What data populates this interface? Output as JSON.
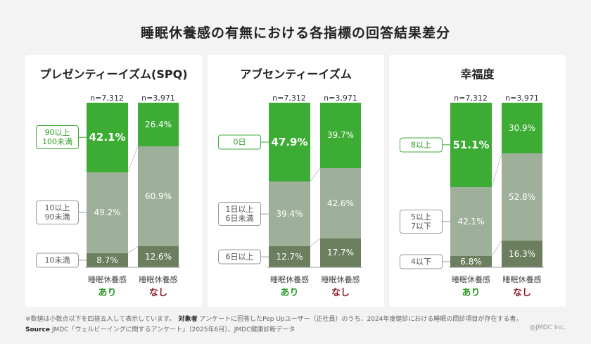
{
  "title": "睡眠休養感の有無における各指標の回答結果差分",
  "colors": {
    "top": "#3cac34",
    "mid": "#9fb09a",
    "bottom": "#6b7f5f",
    "ari": "#2f9b28",
    "nashi": "#8a1f2a"
  },
  "chart_data": [
    {
      "type": "bar",
      "stacked": true,
      "title": "プレゼンティーイズム(SPQ)",
      "categories": [
        "睡眠休養感 あり",
        "睡眠休養感 なし"
      ],
      "n": [
        "n=7,312",
        "n=3,971"
      ],
      "series": [
        {
          "name": "90以上\n100未満",
          "values": [
            42.1,
            26.4
          ]
        },
        {
          "name": "10以上\n90未満",
          "values": [
            49.2,
            60.9
          ]
        },
        {
          "name": "10未満",
          "values": [
            8.7,
            12.6
          ]
        }
      ],
      "ylim": [
        0,
        100
      ]
    },
    {
      "type": "bar",
      "stacked": true,
      "title": "アブセンティーイズム",
      "categories": [
        "睡眠休養感 あり",
        "睡眠休養感 なし"
      ],
      "n": [
        "n=7,312",
        "n=3,971"
      ],
      "series": [
        {
          "name": "0日",
          "values": [
            47.9,
            39.7
          ]
        },
        {
          "name": "1日以上\n6日未満",
          "values": [
            39.4,
            42.6
          ]
        },
        {
          "name": "6日以上",
          "values": [
            12.7,
            17.7
          ]
        }
      ],
      "ylim": [
        0,
        100
      ]
    },
    {
      "type": "bar",
      "stacked": true,
      "title": "幸福度",
      "categories": [
        "睡眠休養感 あり",
        "睡眠休養感 なし"
      ],
      "n": [
        "n=7,312",
        "n=3,971"
      ],
      "series": [
        {
          "name": "8以上",
          "values": [
            51.1,
            30.9
          ]
        },
        {
          "name": "5以上\n7以下",
          "values": [
            42.1,
            52.8
          ]
        },
        {
          "name": "4以下",
          "values": [
            6.8,
            16.3
          ]
        }
      ],
      "ylim": [
        0,
        100
      ]
    }
  ],
  "group_prefix": "睡眠休養感",
  "group_ari": "あり",
  "group_nashi": "なし",
  "footnote": "※数値は小数点以下を四捨五入して表示しています。",
  "target_label": "対象者",
  "target_text": "アンケートに回答したPep Upユーザー（正社員）のうち、2024年度健診における睡眠の問診項目が存在する者。",
  "source_label": "Source",
  "source_text": "JMDC「ウェルビーイングに関するアンケート」（2025年6月）、JMDC健康診断データ",
  "copyright": "@JMDC Inc."
}
